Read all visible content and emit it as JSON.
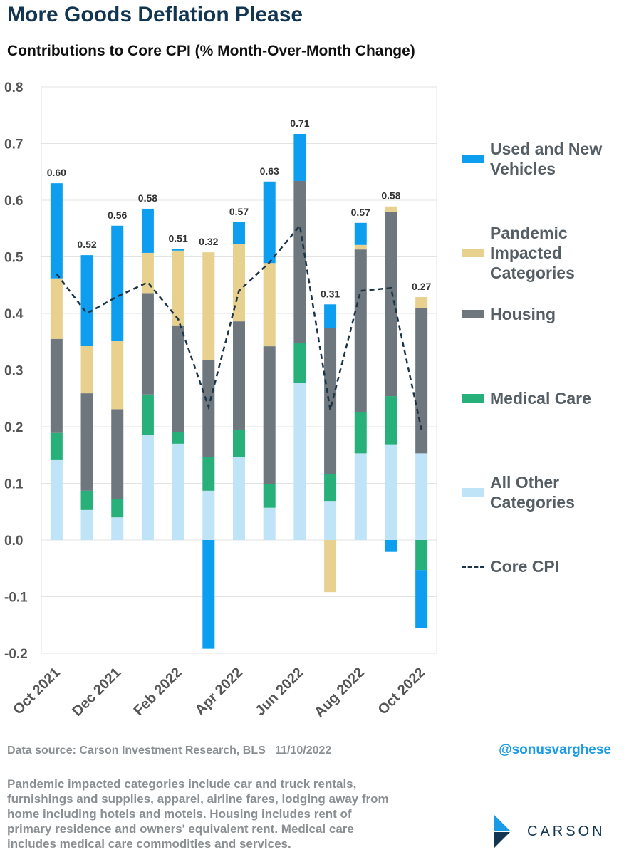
{
  "chart_data": {
    "type": "stacked-bar-line",
    "title": "More Goods Deflation Please",
    "subtitle": "Contributions to Core CPI (% Month-Over-Month Change)",
    "categories": [
      "Oct 2021",
      null,
      "Dec 2021",
      null,
      "Feb 2022",
      null,
      "Apr 2022",
      null,
      "Jun 2022",
      null,
      "Aug 2022",
      null,
      "Oct 2022"
    ],
    "series": [
      {
        "name": "All Other Categories",
        "color": "#bfe3f7",
        "values": [
          0.141,
          0.053,
          0.04,
          0.185,
          0.17,
          0.087,
          0.147,
          0.057,
          0.277,
          0.069,
          0.153,
          0.169,
          0.153
        ]
      },
      {
        "name": "Medical Care",
        "color": "#27b07a",
        "values": [
          0.048,
          0.034,
          0.032,
          0.072,
          0.02,
          0.059,
          0.048,
          0.042,
          0.071,
          0.047,
          0.073,
          0.085,
          -0.053
        ]
      },
      {
        "name": "Housing",
        "color": "#6d777d",
        "values": [
          0.166,
          0.172,
          0.159,
          0.179,
          0.189,
          0.171,
          0.191,
          0.243,
          0.286,
          0.258,
          0.287,
          0.326,
          0.257
        ]
      },
      {
        "name": "Pandemic Impacted Categories",
        "color": "#e8d08e",
        "values": [
          0.107,
          0.084,
          0.12,
          0.071,
          0.132,
          0.191,
          0.136,
          0.147,
          0,
          -0.092,
          0.008,
          0.009,
          0.019
        ]
      },
      {
        "name": "Used and New Vehicles",
        "color": "#0d9ef0",
        "values": [
          0.168,
          0.16,
          0.204,
          0.078,
          0.003,
          -0.192,
          0.039,
          0.144,
          0.083,
          0.042,
          0.039,
          -0.021,
          -0.102
        ]
      }
    ],
    "line": {
      "name": "Core CPI",
      "color": "#1c3448",
      "values": [
        0.47,
        0.4,
        0.43,
        0.455,
        0.39,
        0.235,
        0.44,
        0.49,
        0.555,
        0.23,
        0.44,
        0.445,
        0.195
      ]
    },
    "data_labels": {
      "values": [
        0.6,
        0.52,
        0.56,
        0.58,
        0.51,
        0.32,
        0.57,
        0.63,
        0.71,
        0.31,
        0.57,
        0.58,
        0.27
      ],
      "value_labels": [
        "0.60",
        "0.52",
        "0.56",
        "0.58",
        "0.51",
        "0.32",
        "0.57",
        "0.63",
        "0.71",
        "0.31",
        "0.57",
        "0.58",
        "0.27"
      ]
    },
    "ylim": [
      -0.2,
      0.8
    ],
    "yticks": [
      -0.2,
      -0.1,
      {
        "value": 0,
        "label": "0.0"
      },
      0.1,
      0.2,
      0.3,
      0.4,
      0.5,
      0.6,
      0.7,
      0.8
    ],
    "grid": true,
    "legend_order": [
      4,
      3,
      2,
      1,
      0
    ]
  },
  "source": "Data source: Carson Investment Research, BLS   11/10/2022",
  "handle": "@sonusvarghese",
  "note": "Pandemic impacted categories include car and truck rentals, furnishings and supplies, apparel, airline fares, lodging away from home including hotels and motels. Housing includes rent of primary residence and owners' equivalent rent. Medical care includes medical care commodities and services.",
  "logo": "CARSON"
}
